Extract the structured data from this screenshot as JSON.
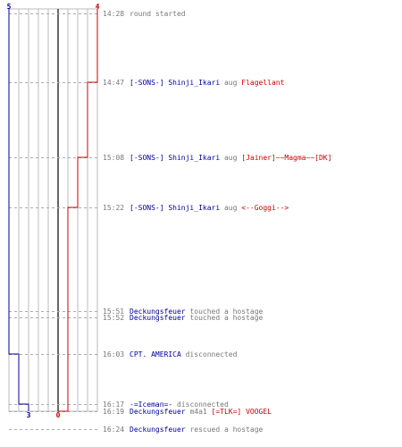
{
  "scores": {
    "blue_start": "5",
    "red_start": "4",
    "blue_end": "3",
    "red_end": "0"
  },
  "colors": {
    "blue": "#000099",
    "red": "#cc0000",
    "gray": "#777777",
    "grid": "#bbbbbb"
  },
  "events": [
    {
      "id": "e1",
      "time": "14:28",
      "parts": [
        {
          "t": "round started",
          "c": "gray"
        }
      ]
    },
    {
      "id": "e2",
      "time": "14:47",
      "parts": [
        {
          "t": "[-SONS-] Shinji_Ikari",
          "c": "blue"
        },
        {
          "t": " aug ",
          "c": "gray"
        },
        {
          "t": "Flagellant",
          "c": "red"
        }
      ]
    },
    {
      "id": "e3",
      "time": "15:08",
      "parts": [
        {
          "t": "[-SONS-] Shinji_Ikari",
          "c": "blue"
        },
        {
          "t": " aug ",
          "c": "gray"
        },
        {
          "t": "[Jainer]~~Magma~~[DK]",
          "c": "red"
        }
      ]
    },
    {
      "id": "e4",
      "time": "15:22",
      "parts": [
        {
          "t": "[-SONS-] Shinji_Ikari",
          "c": "blue"
        },
        {
          "t": " aug ",
          "c": "gray"
        },
        {
          "t": "<--Goggi-->",
          "c": "red"
        }
      ]
    },
    {
      "id": "e5",
      "time": "15:51",
      "parts": [
        {
          "t": "Deckungsfeuer",
          "c": "blue"
        },
        {
          "t": " touched a hostage",
          "c": "gray"
        }
      ]
    },
    {
      "id": "e6",
      "time": "15:52",
      "parts": [
        {
          "t": "Deckungsfeuer",
          "c": "blue"
        },
        {
          "t": " touched a hostage",
          "c": "gray"
        }
      ]
    },
    {
      "id": "e7",
      "time": "16:03",
      "parts": [
        {
          "t": "CPT. AMERICA",
          "c": "blue"
        },
        {
          "t": " disconnected",
          "c": "gray"
        }
      ]
    },
    {
      "id": "e8",
      "time": "16:17",
      "parts": [
        {
          "t": "-=Iceman=-",
          "c": "blue"
        },
        {
          "t": " disconnected",
          "c": "gray"
        }
      ]
    },
    {
      "id": "e9",
      "time": "16:19",
      "parts": [
        {
          "t": "Deckungsfeuer",
          "c": "blue"
        },
        {
          "t": " m4a1 ",
          "c": "gray"
        },
        {
          "t": "[=TLK=] VOOGEL",
          "c": "red"
        }
      ]
    },
    {
      "id": "e10",
      "time": "16:24",
      "parts": [
        {
          "t": "Deckungsfeuer",
          "c": "blue"
        },
        {
          "t": " rescued a hostage",
          "c": "gray"
        }
      ]
    }
  ]
}
